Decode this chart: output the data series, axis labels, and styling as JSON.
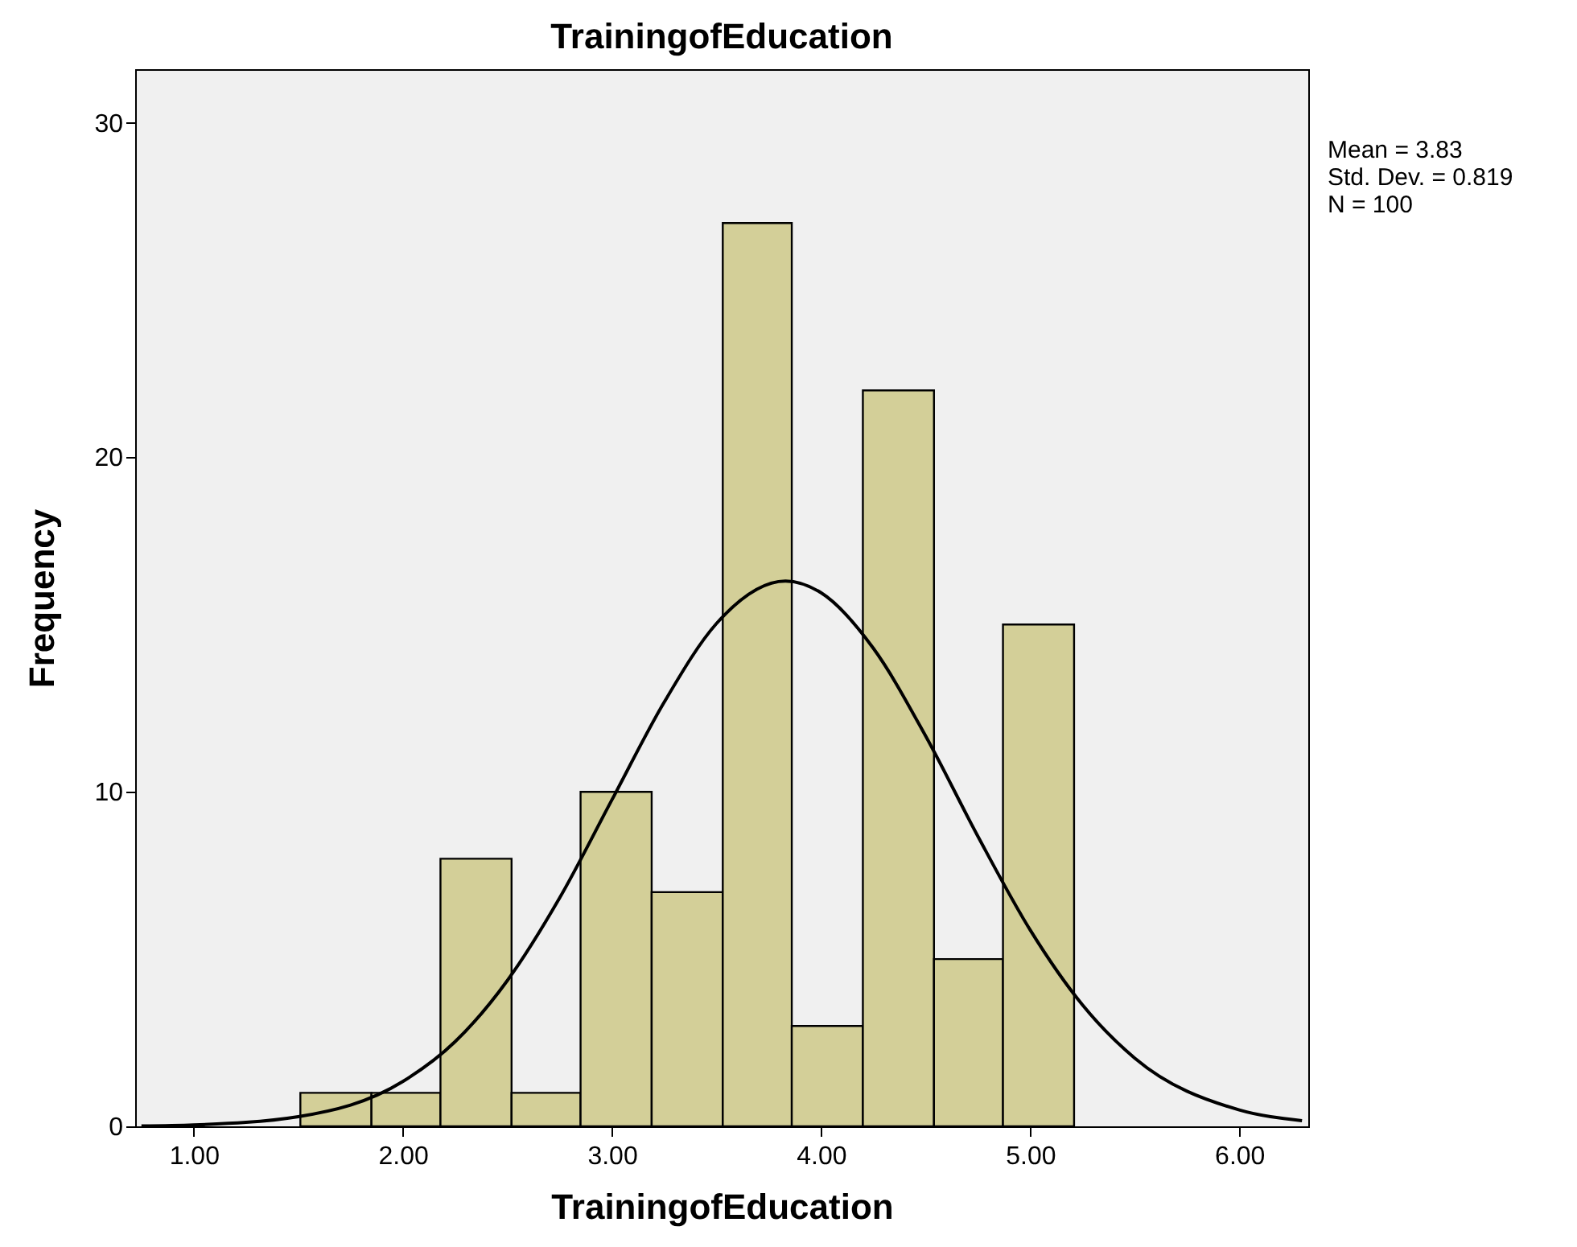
{
  "chart_data": {
    "type": "histogram",
    "title": "TrainingofEducation",
    "xlabel": "TrainingofEducation",
    "ylabel": "Frequency",
    "bins": [
      1.51,
      1.85,
      2.18,
      2.52,
      2.85,
      3.19,
      3.53,
      3.86,
      4.2,
      4.54,
      4.87,
      5.21
    ],
    "series": [
      {
        "color": "#d3cf98",
        "values": [
          1,
          1,
          8,
          1,
          10,
          7,
          27,
          3,
          22,
          5,
          15
        ]
      },
      {
        "type": "line",
        "color": "#000000",
        "x": [
          0.75,
          1.0,
          1.5,
          2.0,
          2.25,
          2.5,
          2.75,
          3.0,
          3.25,
          3.5,
          3.83,
          4.0,
          4.25,
          4.5,
          4.75,
          5.0,
          5.25,
          5.5,
          6.0,
          6.3
        ],
        "values": [
          0.01,
          0.04,
          0.29,
          1.34,
          2.53,
          4.36,
          6.83,
          9.76,
          12.68,
          15.03,
          16.3,
          15.95,
          14.29,
          11.67,
          8.67,
          5.87,
          3.63,
          2.04,
          0.49,
          0.17
        ]
      }
    ],
    "xlim": [
      0.72,
      6.33
    ],
    "xticks": [
      {
        "value": 1,
        "label": "1.00"
      },
      {
        "value": 2,
        "label": "2.00"
      },
      {
        "value": 3,
        "label": "3.00"
      },
      {
        "value": 4,
        "label": "4.00"
      },
      {
        "value": 5,
        "label": "5.00"
      },
      {
        "value": 6,
        "label": "6.00"
      }
    ],
    "ylim": [
      0,
      31.6
    ],
    "yticks": [
      0,
      10,
      20,
      30
    ],
    "annotations": [
      "Mean = 3.83",
      "Std. Dev. = 0.819",
      "N = 100"
    ],
    "grid": false,
    "marker": "none",
    "line_style": "solid"
  }
}
